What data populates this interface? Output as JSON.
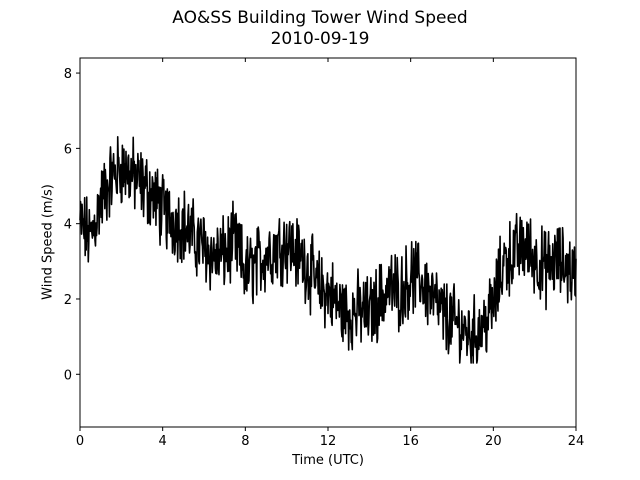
{
  "chart_data": {
    "type": "line",
    "title": "AO&SS Building Tower Wind Speed",
    "subtitle": "2010-09-19",
    "xlabel": "Time (UTC)",
    "ylabel": "Wind Speed (m/s)",
    "xlim": [
      0,
      24
    ],
    "ylim": [
      -1.4,
      8.4
    ],
    "xticks": [
      0,
      4,
      8,
      12,
      16,
      20,
      24
    ],
    "yticks": [
      0,
      2,
      4,
      6,
      8
    ],
    "grid": false,
    "line_color": "#000000",
    "series": [
      {
        "x": [
          0,
          0.5,
          1,
          1.5,
          2,
          2.5,
          3,
          3.5,
          4,
          4.5,
          5,
          5.5,
          6,
          6.5,
          7,
          7.5,
          8,
          8.5,
          9,
          9.5,
          10,
          10.5,
          11,
          11.5,
          12,
          12.5,
          13,
          13.5,
          14,
          14.5,
          15,
          15.5,
          16,
          16.5,
          17,
          17.5,
          18,
          18.5,
          19,
          19.5,
          20,
          20.5,
          21,
          21.5,
          22,
          22.5,
          23,
          23.5,
          24
        ],
        "y": [
          4.0,
          3.6,
          4.6,
          5.2,
          5.5,
          5.3,
          5.0,
          4.8,
          4.3,
          4.1,
          4.0,
          3.6,
          3.4,
          3.1,
          3.2,
          3.5,
          2.7,
          2.9,
          3.2,
          3.4,
          3.5,
          3.2,
          2.9,
          2.3,
          2.2,
          1.8,
          1.6,
          1.7,
          1.6,
          2.0,
          2.3,
          2.2,
          2.6,
          2.5,
          2.1,
          1.6,
          1.4,
          1.2,
          1.0,
          1.3,
          1.8,
          3.0,
          3.2,
          3.4,
          3.1,
          2.8,
          3.0,
          2.9,
          2.6
        ]
      }
    ]
  }
}
